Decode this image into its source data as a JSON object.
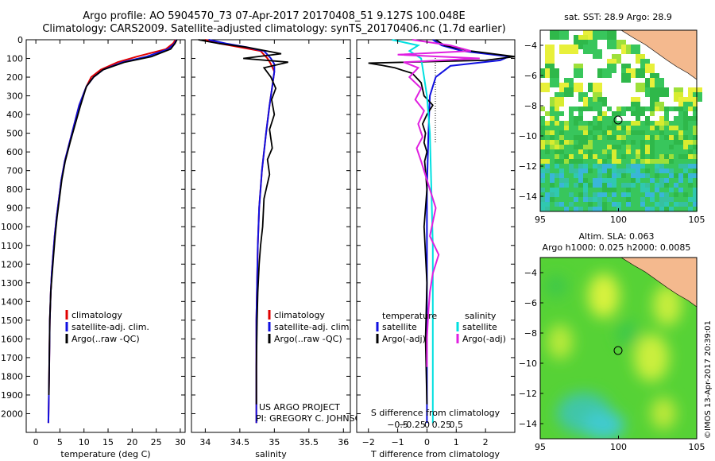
{
  "header": {
    "line1": "Argo profile: AO 5904570_73 07-Apr-2017 20170408_51 9.127S 100.048E",
    "line2": "Climatology: CARS2009. Satellite-adjusted climatology: synTS_20170406.nc (1.7d earlier)"
  },
  "colors": {
    "climatology": "#e00000",
    "satellite": "#1010e0",
    "argo": "#000000",
    "sal_satellite": "#00e0e0",
    "sal_argo": "#e020e0",
    "land": "#f4b98e"
  },
  "chart_data": [
    {
      "type": "line",
      "name": "temperature-profile",
      "xlabel": "temperature (deg C)",
      "ylabel": "",
      "xlim": [
        -2,
        31
      ],
      "ylim": [
        2100,
        0
      ],
      "xticks": [
        0,
        5,
        10,
        15,
        20,
        25,
        30
      ],
      "xticklabels": [
        "0",
        "5",
        "10",
        "15",
        "20",
        "25",
        "30"
      ],
      "yticks": [
        0,
        100,
        200,
        300,
        400,
        500,
        600,
        700,
        800,
        900,
        1000,
        1100,
        1200,
        1300,
        1400,
        1500,
        1600,
        1700,
        1800,
        1900,
        2000
      ],
      "yticklabels": [
        "0",
        "100",
        "200",
        "300",
        "400",
        "500",
        "600",
        "700",
        "800",
        "900",
        "1000",
        "1100",
        "1200",
        "1300",
        "1400",
        "1500",
        "1600",
        "1700",
        "1800",
        "1900",
        "2000"
      ],
      "legend": [
        "climatology",
        "satellite-adj. clim.",
        "Argo(..raw -QC)"
      ],
      "series": [
        {
          "name": "climatology",
          "color": "#e00000",
          "x": [
            29,
            28.5,
            27,
            21,
            17,
            13.5,
            11.5,
            10.5,
            9,
            8,
            7,
            6,
            5.3,
            4.8,
            4.3,
            3.9,
            3.6,
            3.3,
            3.1,
            2.9,
            2.8,
            2.7,
            2.6
          ],
          "y": [
            0,
            20,
            50,
            90,
            120,
            160,
            200,
            250,
            350,
            450,
            550,
            650,
            750,
            850,
            950,
            1050,
            1150,
            1250,
            1350,
            1500,
            1700,
            1900,
            2050
          ]
        },
        {
          "name": "satellite-adj. clim.",
          "color": "#1010e0",
          "x": [
            29.2,
            28.8,
            27.5,
            23,
            18,
            14,
            12,
            10.5,
            9,
            8,
            7,
            6,
            5.3,
            4.8,
            4.3,
            3.9,
            3.6,
            3.3,
            3.1,
            2.9,
            2.8,
            2.7,
            2.6
          ],
          "y": [
            0,
            20,
            50,
            90,
            120,
            160,
            200,
            250,
            350,
            450,
            550,
            650,
            750,
            850,
            950,
            1050,
            1150,
            1250,
            1350,
            1500,
            1700,
            1900,
            2050
          ]
        },
        {
          "name": "Argo(..raw -QC)",
          "color": "#000000",
          "x": [
            29.3,
            28.9,
            28,
            24,
            18.5,
            14,
            12,
            10.5,
            9.3,
            8.2,
            7.1,
            6.1,
            5.4,
            4.9,
            4.4,
            4,
            3.7,
            3.4,
            3.1,
            2.9,
            2.8,
            2.7
          ],
          "y": [
            0,
            20,
            50,
            90,
            120,
            160,
            200,
            250,
            350,
            450,
            550,
            650,
            750,
            850,
            950,
            1050,
            1150,
            1250,
            1350,
            1500,
            1700,
            1900
          ]
        }
      ]
    },
    {
      "type": "line",
      "name": "salinity-profile",
      "xlabel": "salinity",
      "xlim": [
        33.8,
        36.1
      ],
      "ylim": [
        2100,
        0
      ],
      "xticks": [
        34,
        34.5,
        35,
        35.5,
        36
      ],
      "xticklabels": [
        "34",
        "34.5",
        "35",
        "35.5",
        "36"
      ],
      "legend": [
        "climatology",
        "satellite-adj. clim.",
        "Argo(..raw -QC)"
      ],
      "annotation": [
        "US ARGO PROJECT",
        "PI: GREGORY C. JOHNSON"
      ],
      "series": [
        {
          "name": "climatology",
          "color": "#e00000",
          "x": [
            34.0,
            34.2,
            34.5,
            34.8,
            34.85,
            34.9,
            34.95,
            35.0,
            34.97,
            34.93,
            34.88,
            34.82,
            34.78,
            34.76,
            34.75,
            34.74,
            34.74,
            34.74
          ],
          "y": [
            0,
            20,
            40,
            60,
            80,
            100,
            130,
            170,
            250,
            350,
            500,
            700,
            900,
            1100,
            1300,
            1500,
            1800,
            2050
          ]
        },
        {
          "name": "satellite-adj. clim.",
          "color": "#1010e0",
          "x": [
            34.05,
            34.3,
            34.6,
            34.85,
            34.9,
            34.95,
            35.0,
            35.0,
            34.97,
            34.93,
            34.88,
            34.82,
            34.78,
            34.76,
            34.75,
            34.74,
            34.74,
            34.74
          ],
          "y": [
            0,
            20,
            40,
            60,
            80,
            100,
            130,
            170,
            250,
            350,
            500,
            700,
            900,
            1100,
            1300,
            1500,
            1800,
            2050
          ]
        },
        {
          "name": "Argo(..raw -QC)",
          "color": "#000000",
          "x": [
            33.9,
            34.2,
            34.6,
            35.1,
            34.55,
            35.2,
            34.85,
            34.95,
            35.02,
            34.96,
            35.0,
            34.93,
            34.97,
            34.9,
            34.93,
            34.85,
            34.83,
            34.8,
            34.78,
            34.76,
            34.75,
            34.74,
            34.74
          ],
          "y": [
            0,
            20,
            40,
            75,
            100,
            120,
            150,
            200,
            260,
            320,
            400,
            480,
            580,
            640,
            720,
            850,
            1000,
            1100,
            1200,
            1350,
            1500,
            1750,
            1950
          ]
        }
      ]
    },
    {
      "type": "line",
      "name": "difference-profile",
      "xlabel": "T difference from climatology",
      "xlabel_top": "S difference from climatology",
      "xlim": [
        -2.4,
        3
      ],
      "ylim": [
        2100,
        0
      ],
      "xticks": [
        -2,
        -1,
        0,
        1,
        2
      ],
      "xticklabels": [
        "−2",
        "−1",
        "0",
        "1",
        "2"
      ],
      "sxticks": [
        -1,
        -0.5,
        0,
        0.5,
        1
      ],
      "sxticklabels": [
        "−0.5",
        "−0.25",
        "0",
        "0.25",
        "0.5"
      ],
      "legend_temperature_title": "temperature",
      "legend_salinity_title": "salinity",
      "legend": [
        "satellite",
        "Argo(-adj)",
        "satellite",
        "Argo(-adj)"
      ],
      "series": [
        {
          "name": "temperature satellite",
          "color": "#1010e0",
          "x": [
            0.2,
            0.5,
            1.2,
            2.8,
            2.5,
            0.8,
            0.3,
            0.1,
            0.05,
            0.0,
            0.0,
            0.0
          ],
          "y": [
            0,
            30,
            60,
            90,
            110,
            140,
            200,
            300,
            500,
            800,
            1200,
            2050
          ]
        },
        {
          "name": "temperature Argo(-adj)",
          "color": "#000000",
          "x": [
            0.3,
            0.6,
            1.5,
            3.0,
            2.0,
            -2.0,
            -1.6,
            -1.1,
            -0.5,
            -0.2,
            -0.1,
            0.2,
            0.0,
            -0.15,
            -0.05,
            -0.1,
            0.0,
            -0.08,
            -0.05,
            0.0,
            -0.1,
            0.0,
            -0.05,
            0.0
          ],
          "y": [
            0,
            30,
            60,
            90,
            110,
            125,
            135,
            150,
            180,
            230,
            300,
            350,
            400,
            450,
            500,
            550,
            600,
            650,
            700,
            800,
            1000,
            1300,
            1600,
            1950
          ]
        },
        {
          "name": "salinity satellite",
          "color": "#00e0e0",
          "x": [
            -1.2,
            -0.3,
            -0.6,
            -0.2,
            -0.1,
            0.0,
            0.1,
            0.15,
            0.2,
            0.2,
            0.2
          ],
          "y": [
            0,
            30,
            60,
            100,
            200,
            300,
            500,
            800,
            1100,
            1500,
            2050
          ]
        },
        {
          "name": "salinity Argo(-adj)",
          "color": "#e020e0",
          "x": [
            -0.5,
            0.8,
            1.5,
            -1.0,
            1.8,
            -0.8,
            -0.3,
            -0.6,
            -0.2,
            -0.4,
            -0.1,
            -0.3,
            -0.15,
            -0.35,
            -0.2,
            0.0,
            0.3,
            0.1,
            0.4,
            0.2,
            0.1,
            0.05,
            0.0,
            0.0
          ],
          "y": [
            0,
            30,
            60,
            80,
            100,
            120,
            150,
            200,
            260,
            320,
            380,
            450,
            520,
            580,
            650,
            750,
            900,
            1050,
            1150,
            1250,
            1350,
            1450,
            1600,
            1750
          ]
        }
      ]
    },
    {
      "type": "heatmap",
      "name": "sst-map",
      "title": "sat. SST: 28.9 Argo: 28.9",
      "xlim": [
        95,
        105
      ],
      "ylim": [
        -15,
        -3
      ],
      "xticks": [
        95,
        100,
        105
      ],
      "xticklabels": [
        "95",
        "100",
        "105"
      ],
      "yticks": [
        -14,
        -12,
        -10,
        -8,
        -6,
        -4
      ],
      "yticklabels": [
        "−14",
        "−12",
        "−10",
        "−8",
        "−6",
        "−4"
      ],
      "marker": {
        "lon": 100.048,
        "lat": -9.127
      }
    },
    {
      "type": "heatmap",
      "name": "sla-map",
      "title": "Altim. SLA: 0.063",
      "subtitle": "Argo h1000: 0.025 h2000: 0.0085",
      "xlim": [
        95,
        105
      ],
      "ylim": [
        -15,
        -3
      ],
      "xticks": [
        95,
        100,
        105
      ],
      "xticklabels": [
        "95",
        "100",
        "105"
      ],
      "yticks": [
        -14,
        -12,
        -10,
        -8,
        -6,
        -4
      ],
      "yticklabels": [
        "−14",
        "−12",
        "−10",
        "−8",
        "−6",
        "−4"
      ],
      "marker": {
        "lon": 100.048,
        "lat": -9.127
      }
    }
  ],
  "footer": {
    "stamp": "©IMOS 13-Apr-2017 20:39:01"
  }
}
